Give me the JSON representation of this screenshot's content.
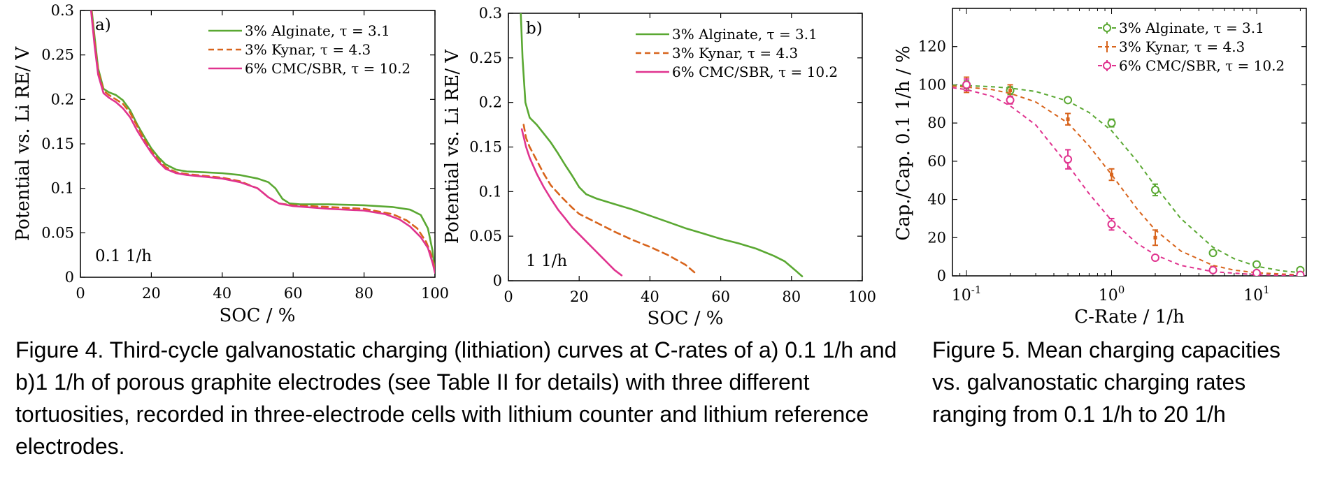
{
  "captions": {
    "fig4": "Figure 4. Third-cycle galvanostatic charging (lithiation) curves at C-rates of a) 0.1 1/h and b)1 1/h of porous graphite electrodes (see Table II for details) with three different tortuosities, recorded in three-electrode cells with lithium counter and lithium reference electrodes.",
    "fig5": "Figure 5. Mean charging capacities vs. galvanostatic charging rates ranging from 0.1 1/h to 20 1/h"
  },
  "colors": {
    "alginate": "#5aa832",
    "kynar": "#d8641c",
    "cmc": "#e0338f"
  },
  "chart_data": [
    {
      "type": "line",
      "panel_label": "a)",
      "annotation": "0.1 1/h",
      "xlabel": "SOC / %",
      "ylabel": "Potential vs. Li RE/ V",
      "xlim": [
        0,
        100
      ],
      "ylim": [
        0,
        0.3
      ],
      "x_ticks": [
        "0",
        "20",
        "40",
        "60",
        "80",
        "100"
      ],
      "y_ticks": [
        "0",
        "0.05",
        "0.1",
        "0.15",
        "0.2",
        "0.25",
        "0.3"
      ],
      "grid": false,
      "legend_position": "top-right",
      "series": [
        {
          "name": "3% Alginate, τ = 3.1",
          "style": "solid",
          "color": "#5aa832",
          "points": [
            [
              3.2,
              0.3
            ],
            [
              4,
              0.27
            ],
            [
              5,
              0.235
            ],
            [
              6.5,
              0.212
            ],
            [
              8,
              0.208
            ],
            [
              10,
              0.205
            ],
            [
              12,
              0.199
            ],
            [
              14,
              0.188
            ],
            [
              16,
              0.172
            ],
            [
              18,
              0.158
            ],
            [
              20,
              0.145
            ],
            [
              22,
              0.135
            ],
            [
              24,
              0.127
            ],
            [
              27,
              0.121
            ],
            [
              30,
              0.119
            ],
            [
              35,
              0.118
            ],
            [
              40,
              0.117
            ],
            [
              45,
              0.115
            ],
            [
              50,
              0.111
            ],
            [
              53,
              0.107
            ],
            [
              55,
              0.1
            ],
            [
              57,
              0.088
            ],
            [
              59,
              0.083
            ],
            [
              62,
              0.082
            ],
            [
              70,
              0.082
            ],
            [
              80,
              0.081
            ],
            [
              88,
              0.079
            ],
            [
              93,
              0.076
            ],
            [
              96,
              0.07
            ],
            [
              98,
              0.055
            ],
            [
              99.3,
              0.03
            ],
            [
              100,
              0.006
            ]
          ]
        },
        {
          "name": "3% Kynar, τ = 4.3",
          "style": "dashed",
          "color": "#d8641c",
          "points": [
            [
              3.1,
              0.3
            ],
            [
              4,
              0.265
            ],
            [
              5,
              0.232
            ],
            [
              6.5,
              0.21
            ],
            [
              8,
              0.205
            ],
            [
              10,
              0.2
            ],
            [
              12,
              0.195
            ],
            [
              14,
              0.185
            ],
            [
              16,
              0.17
            ],
            [
              18,
              0.155
            ],
            [
              20,
              0.142
            ],
            [
              22,
              0.132
            ],
            [
              24,
              0.124
            ],
            [
              27,
              0.118
            ],
            [
              30,
              0.116
            ],
            [
              35,
              0.114
            ],
            [
              40,
              0.112
            ],
            [
              45,
              0.108
            ],
            [
              50,
              0.1
            ],
            [
              53,
              0.09
            ],
            [
              56,
              0.083
            ],
            [
              60,
              0.081
            ],
            [
              70,
              0.079
            ],
            [
              80,
              0.077
            ],
            [
              88,
              0.071
            ],
            [
              92,
              0.064
            ],
            [
              95,
              0.055
            ],
            [
              97.5,
              0.04
            ],
            [
              99,
              0.025
            ],
            [
              100,
              0.008
            ]
          ]
        },
        {
          "name": "6% CMC/SBR, τ = 10.2",
          "style": "solid",
          "color": "#e0338f",
          "points": [
            [
              3,
              0.3
            ],
            [
              4,
              0.26
            ],
            [
              5,
              0.228
            ],
            [
              6.5,
              0.207
            ],
            [
              8,
              0.202
            ],
            [
              10,
              0.197
            ],
            [
              12,
              0.19
            ],
            [
              14,
              0.18
            ],
            [
              16,
              0.165
            ],
            [
              18,
              0.152
            ],
            [
              20,
              0.14
            ],
            [
              22,
              0.13
            ],
            [
              24,
              0.122
            ],
            [
              27,
              0.117
            ],
            [
              30,
              0.115
            ],
            [
              35,
              0.113
            ],
            [
              40,
              0.111
            ],
            [
              45,
              0.107
            ],
            [
              50,
              0.1
            ],
            [
              53,
              0.09
            ],
            [
              56,
              0.083
            ],
            [
              60,
              0.08
            ],
            [
              70,
              0.077
            ],
            [
              80,
              0.075
            ],
            [
              86,
              0.071
            ],
            [
              90,
              0.065
            ],
            [
              93,
              0.057
            ],
            [
              96,
              0.045
            ],
            [
              98,
              0.033
            ],
            [
              99.4,
              0.015
            ],
            [
              100,
              0.005
            ]
          ]
        }
      ]
    },
    {
      "type": "line",
      "panel_label": "b)",
      "annotation": "1 1/h",
      "xlabel": "SOC / %",
      "ylabel": "Potential vs. Li RE/ V",
      "xlim": [
        0,
        100
      ],
      "ylim": [
        0,
        0.3
      ],
      "x_ticks": [
        "0",
        "20",
        "40",
        "60",
        "80",
        "100"
      ],
      "y_ticks": [
        "0",
        "0.05",
        "0.1",
        "0.15",
        "0.2",
        "0.25",
        "0.3"
      ],
      "grid": false,
      "legend_position": "top-right",
      "series": [
        {
          "name": "3% Alginate, τ = 3.1",
          "style": "solid",
          "color": "#5aa832",
          "points": [
            [
              3.5,
              0.3
            ],
            [
              4,
              0.25
            ],
            [
              4.8,
              0.2
            ],
            [
              6,
              0.183
            ],
            [
              8,
              0.175
            ],
            [
              10,
              0.165
            ],
            [
              12,
              0.155
            ],
            [
              14,
              0.143
            ],
            [
              16,
              0.13
            ],
            [
              18,
              0.118
            ],
            [
              20,
              0.105
            ],
            [
              22,
              0.097
            ],
            [
              25,
              0.092
            ],
            [
              30,
              0.086
            ],
            [
              35,
              0.08
            ],
            [
              40,
              0.073
            ],
            [
              45,
              0.066
            ],
            [
              50,
              0.059
            ],
            [
              55,
              0.053
            ],
            [
              60,
              0.047
            ],
            [
              65,
              0.042
            ],
            [
              70,
              0.036
            ],
            [
              75,
              0.028
            ],
            [
              78,
              0.022
            ],
            [
              81,
              0.012
            ],
            [
              83,
              0.005
            ]
          ]
        },
        {
          "name": "3% Kynar, τ = 4.3",
          "style": "dashed",
          "color": "#d8641c",
          "points": [
            [
              4.3,
              0.175
            ],
            [
              5,
              0.16
            ],
            [
              6,
              0.15
            ],
            [
              8,
              0.135
            ],
            [
              10,
              0.12
            ],
            [
              12,
              0.107
            ],
            [
              15,
              0.094
            ],
            [
              18,
              0.082
            ],
            [
              20,
              0.075
            ],
            [
              25,
              0.065
            ],
            [
              30,
              0.055
            ],
            [
              35,
              0.046
            ],
            [
              40,
              0.038
            ],
            [
              45,
              0.029
            ],
            [
              50,
              0.018
            ],
            [
              53,
              0.008
            ]
          ]
        },
        {
          "name": "6% CMC/SBR, τ = 10.2",
          "style": "solid",
          "color": "#e0338f",
          "points": [
            [
              3.8,
              0.17
            ],
            [
              5,
              0.15
            ],
            [
              6,
              0.138
            ],
            [
              8,
              0.12
            ],
            [
              10,
              0.105
            ],
            [
              12,
              0.092
            ],
            [
              14,
              0.08
            ],
            [
              16,
              0.07
            ],
            [
              18,
              0.06
            ],
            [
              20,
              0.052
            ],
            [
              22,
              0.044
            ],
            [
              24,
              0.036
            ],
            [
              26,
              0.028
            ],
            [
              28,
              0.02
            ],
            [
              30,
              0.012
            ],
            [
              32,
              0.006
            ]
          ]
        }
      ]
    },
    {
      "type": "scatter",
      "xlabel": "C-Rate / 1/h",
      "ylabel": "Cap./Cap. 0.1 1/h / %",
      "xscale": "log",
      "xlim": [
        0.08,
        22
      ],
      "ylim": [
        0,
        140
      ],
      "x_ticks": [
        {
          "value": 0.1,
          "base": "10",
          "exp": "-1"
        },
        {
          "value": 1,
          "base": "10",
          "exp": "0"
        },
        {
          "value": 10,
          "base": "10",
          "exp": "1"
        }
      ],
      "y_ticks": [
        "0",
        "20",
        "40",
        "60",
        "80",
        "100",
        "120"
      ],
      "grid": false,
      "legend_position": "top-right",
      "series": [
        {
          "name": "3% Alginate, τ = 3.1",
          "color": "#5aa832",
          "marker": "circle",
          "x": [
            0.1,
            0.2,
            0.5,
            1,
            2,
            5,
            10,
            20
          ],
          "y": [
            100,
            97,
            92,
            80,
            45,
            12,
            6,
            3
          ],
          "err": [
            2,
            2,
            1,
            2,
            3,
            1,
            1,
            1
          ],
          "fit": [
            [
              0.08,
              99.8
            ],
            [
              0.1,
              99.6
            ],
            [
              0.15,
              99
            ],
            [
              0.2,
              98.3
            ],
            [
              0.3,
              96.5
            ],
            [
              0.5,
              91.5
            ],
            [
              0.7,
              85.5
            ],
            [
              1,
              76
            ],
            [
              1.5,
              60
            ],
            [
              2,
              47
            ],
            [
              3,
              30
            ],
            [
              5,
              15
            ],
            [
              7,
              9
            ],
            [
              10,
              5
            ],
            [
              15,
              2.6
            ],
            [
              20,
              1.7
            ]
          ]
        },
        {
          "name": "3% Kynar, τ = 4.3",
          "color": "#d8641c",
          "marker": "bar",
          "x": [
            0.1,
            0.2,
            0.5,
            1,
            2,
            5,
            10,
            20
          ],
          "y": [
            100,
            97,
            82,
            53,
            20,
            4,
            1.5,
            1
          ],
          "err": [
            4,
            3,
            3,
            3,
            4,
            1,
            1,
            1
          ],
          "fit": [
            [
              0.08,
              99.3
            ],
            [
              0.1,
              98.8
            ],
            [
              0.15,
              97.5
            ],
            [
              0.2,
              95.5
            ],
            [
              0.3,
              91
            ],
            [
              0.5,
              80
            ],
            [
              0.7,
              68
            ],
            [
              1,
              53
            ],
            [
              1.5,
              35
            ],
            [
              2,
              24
            ],
            [
              3,
              13
            ],
            [
              5,
              5.5
            ],
            [
              7,
              3
            ],
            [
              10,
              1.6
            ],
            [
              20,
              0.5
            ]
          ]
        },
        {
          "name": "6% CMC/SBR, τ = 10.2",
          "color": "#e0338f",
          "marker": "circle",
          "x": [
            0.1,
            0.2,
            0.5,
            1,
            2,
            5,
            10,
            20
          ],
          "y": [
            100,
            92,
            61,
            27,
            9.5,
            3,
            1.5,
            0.5
          ],
          "err": [
            3,
            2,
            5,
            3,
            1,
            1,
            0.5,
            0.5
          ],
          "fit": [
            [
              0.08,
              98.5
            ],
            [
              0.1,
              97.5
            ],
            [
              0.15,
              94
            ],
            [
              0.2,
              89
            ],
            [
              0.3,
              79
            ],
            [
              0.5,
              58
            ],
            [
              0.7,
              43
            ],
            [
              1,
              29
            ],
            [
              1.5,
              17
            ],
            [
              2,
              11
            ],
            [
              3,
              5.5
            ],
            [
              5,
              2.2
            ],
            [
              10,
              0.6
            ],
            [
              20,
              0.15
            ]
          ]
        }
      ]
    }
  ]
}
